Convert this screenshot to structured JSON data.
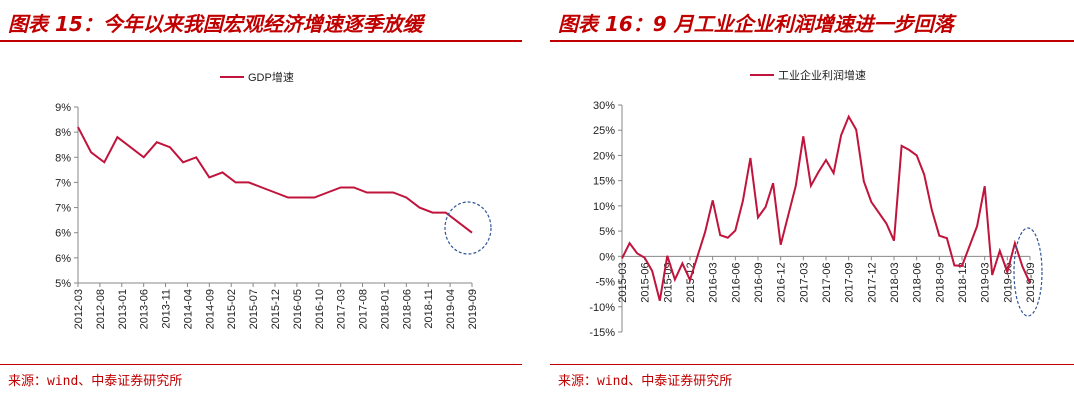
{
  "chart_data": [
    {
      "type": "line",
      "title": "图表 15：今年以来我国宏观经济增速逐季放缓",
      "source": "来源：wind、中泰证券研究所",
      "x": [
        "2012-03",
        "2012-06",
        "2012-09",
        "2012-12",
        "2013-03",
        "2013-06",
        "2013-09",
        "2013-12",
        "2014-03",
        "2014-06",
        "2014-09",
        "2014-12",
        "2015-03",
        "2015-06",
        "2015-09",
        "2015-12",
        "2016-03",
        "2016-06",
        "2016-09",
        "2016-12",
        "2017-03",
        "2017-06",
        "2017-09",
        "2017-12",
        "2018-03",
        "2018-06",
        "2018-09",
        "2018-12",
        "2019-03",
        "2019-06",
        "2019-09"
      ],
      "series": [
        {
          "name": "GDP增速",
          "color": "#c0143c",
          "values": [
            8.1,
            7.6,
            7.4,
            7.9,
            7.7,
            7.5,
            7.8,
            7.7,
            7.4,
            7.5,
            7.1,
            7.2,
            7.0,
            7.0,
            6.9,
            6.8,
            6.7,
            6.7,
            6.7,
            6.8,
            6.9,
            6.9,
            6.8,
            6.8,
            6.8,
            6.7,
            6.5,
            6.4,
            6.4,
            6.2,
            6.0
          ]
        }
      ],
      "xticks": [
        "2012-03",
        "2012-08",
        "2013-01",
        "2013-06",
        "2013-11",
        "2014-04",
        "2014-09",
        "2015-02",
        "2015-07",
        "2015-12",
        "2016-05",
        "2016-10",
        "2017-03",
        "2017-08",
        "2018-01",
        "2018-06",
        "2018-11",
        "2019-04",
        "2019-09"
      ],
      "ylim": [
        5,
        8.5
      ],
      "yticks": [
        {
          "value": 5,
          "label": "5%"
        },
        {
          "value": 5.5,
          "label": "6%"
        },
        {
          "value": 6,
          "label": "6%"
        },
        {
          "value": 6.5,
          "label": "7%"
        },
        {
          "value": 7,
          "label": "7%"
        },
        {
          "value": 7.5,
          "label": "8%"
        },
        {
          "value": 8,
          "label": "8%"
        },
        {
          "value": 8.5,
          "label": "9%"
        }
      ],
      "legend": "top"
    },
    {
      "type": "line",
      "title": "图表 16：9 月工业企业利润增速进一步回落",
      "source": "来源：wind、中泰证券研究所",
      "x": [
        "2015-03",
        "2015-04",
        "2015-05",
        "2015-06",
        "2015-07",
        "2015-08",
        "2015-09",
        "2015-10",
        "2015-11",
        "2015-12",
        "2016-02",
        "2016-03",
        "2016-04",
        "2016-05",
        "2016-06",
        "2016-07",
        "2016-08",
        "2016-09",
        "2016-10",
        "2016-11",
        "2016-12",
        "2017-02",
        "2017-03",
        "2017-04",
        "2017-05",
        "2017-06",
        "2017-07",
        "2017-08",
        "2017-09",
        "2017-10",
        "2017-11",
        "2017-12",
        "2018-02",
        "2018-03",
        "2018-04",
        "2018-05",
        "2018-06",
        "2018-07",
        "2018-08",
        "2018-09",
        "2018-10",
        "2018-11",
        "2018-12",
        "2019-02",
        "2019-03",
        "2019-04",
        "2019-05",
        "2019-06",
        "2019-07",
        "2019-08",
        "2019-09"
      ],
      "series": [
        {
          "name": "工业企业利润增速",
          "color": "#c0143c",
          "values": [
            -0.4,
            2.6,
            0.6,
            -0.3,
            -2.9,
            -8.8,
            0.1,
            -4.6,
            -1.4,
            -4.7,
            4.8,
            11.1,
            4.2,
            3.7,
            5.1,
            11.0,
            19.5,
            7.7,
            9.8,
            14.5,
            2.3,
            14.0,
            23.8,
            14.0,
            16.7,
            19.1,
            16.5,
            24.0,
            27.7,
            25.1,
            14.9,
            10.8,
            6.5,
            3.1,
            21.9,
            21.1,
            20.0,
            16.2,
            9.2,
            4.1,
            3.6,
            -1.8,
            -1.9,
            6.0,
            13.9,
            -3.7,
            1.1,
            -3.1,
            2.6,
            -2.0,
            -5.3
          ]
        }
      ],
      "xticks": [
        "2015-03",
        "2015-06",
        "2015-09",
        "2015-12",
        "2016-03",
        "2016-06",
        "2016-09",
        "2016-12",
        "2017-03",
        "2017-06",
        "2017-09",
        "2017-12",
        "2018-03",
        "2018-06",
        "2018-09",
        "2018-12",
        "2019-03",
        "2019-06",
        "2019-09"
      ],
      "ylim": [
        -15,
        30
      ],
      "yticks": [
        {
          "value": -15,
          "label": "-15%"
        },
        {
          "value": -10,
          "label": "-10%"
        },
        {
          "value": -5,
          "label": "-5%"
        },
        {
          "value": 0,
          "label": "0%"
        },
        {
          "value": 5,
          "label": "5%"
        },
        {
          "value": 10,
          "label": "10%"
        },
        {
          "value": 15,
          "label": "15%"
        },
        {
          "value": 20,
          "label": "20%"
        },
        {
          "value": 25,
          "label": "25%"
        },
        {
          "value": 30,
          "label": "30%"
        }
      ],
      "legend": "top"
    }
  ]
}
